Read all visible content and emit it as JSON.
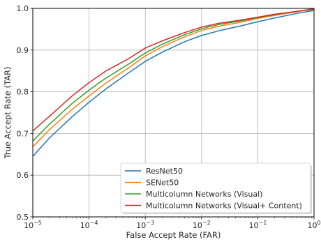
{
  "chart_data": {
    "type": "line",
    "title": "",
    "xlabel": "False Accept Rate (FAR)",
    "ylabel": "True Accept Rate (TAR)",
    "xscale": "log",
    "xlim": [
      1e-05,
      1
    ],
    "ylim": [
      0.5,
      1.0
    ],
    "grid": true,
    "legend_position": "lower-right",
    "x_ticks": [
      {
        "value": 1e-05,
        "base": "10",
        "exp": "−5"
      },
      {
        "value": 0.0001,
        "base": "10",
        "exp": "−4"
      },
      {
        "value": 0.001,
        "base": "10",
        "exp": "−3"
      },
      {
        "value": 0.01,
        "base": "10",
        "exp": "−2"
      },
      {
        "value": 0.1,
        "base": "10",
        "exp": "−1"
      },
      {
        "value": 1,
        "base": "10",
        "exp": "0"
      }
    ],
    "y_ticks": [
      "0.5",
      "0.6",
      "0.7",
      "0.8",
      "0.9",
      "1.0"
    ],
    "x": [
      1e-05,
      2e-05,
      5e-05,
      0.0001,
      0.0002,
      0.0005,
      0.001,
      0.002,
      0.005,
      0.01,
      0.02,
      0.05,
      0.1,
      0.2,
      0.5,
      1
    ],
    "series": [
      {
        "name": "ResNet50",
        "color": "#1f77b4",
        "values": [
          0.645,
          0.69,
          0.74,
          0.775,
          0.807,
          0.845,
          0.873,
          0.895,
          0.92,
          0.935,
          0.946,
          0.958,
          0.968,
          0.977,
          0.988,
          0.995
        ]
      },
      {
        "name": "SENet50",
        "color": "#ff7f0e",
        "values": [
          0.668,
          0.71,
          0.758,
          0.79,
          0.821,
          0.857,
          0.886,
          0.908,
          0.932,
          0.947,
          0.957,
          0.967,
          0.976,
          0.983,
          0.992,
          0.998
        ]
      },
      {
        "name": "Multicolumn Networks (Visual)",
        "color": "#2ca02c",
        "values": [
          0.682,
          0.723,
          0.772,
          0.804,
          0.833,
          0.866,
          0.893,
          0.914,
          0.937,
          0.951,
          0.961,
          0.97,
          0.978,
          0.985,
          0.993,
          0.998
        ]
      },
      {
        "name": "Multicolumn Networks (Visual+ Content)",
        "color": "#d62728",
        "values": [
          0.706,
          0.742,
          0.79,
          0.822,
          0.85,
          0.879,
          0.905,
          0.922,
          0.942,
          0.955,
          0.964,
          0.972,
          0.979,
          0.986,
          0.993,
          0.999
        ]
      }
    ]
  }
}
